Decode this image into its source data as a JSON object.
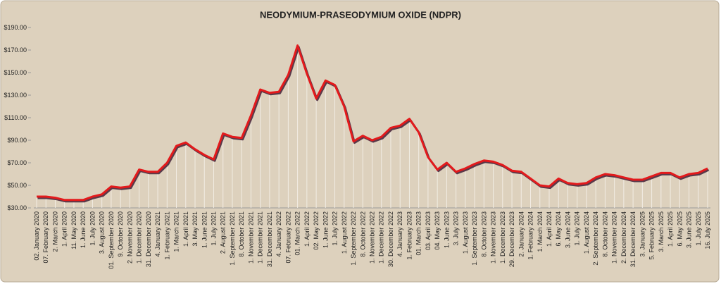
{
  "chart_data": {
    "type": "line",
    "title": "NEODYMIUM-PRASEODYMIUM OXIDE (NDPR)",
    "categories": [
      "02. January 2020",
      "07. February 2020",
      "2. March 2020",
      "1. April 2020",
      "11. May 2020",
      "1. June 2020",
      "1. July 2020",
      "3. August 2020",
      "01. September 2020",
      "9. October 2020",
      "2. November 2020",
      "1. December 2020",
      "31. December 2020",
      "4. January 2021",
      "1. February 2021",
      "1. March 2021",
      "1. April 2021",
      "3. May 2021",
      "1. June 2021",
      "1. July 2021",
      "2. August 2021",
      "1. September 2021",
      "8. October 2021",
      "1. November 2021",
      "1. December 2021",
      "31. December 2021",
      "4. January 2022",
      "07. February 2022",
      "01. March 2022",
      "1. April 2022",
      "02. May 2022",
      "1. June 2022",
      "1. July 2022",
      "1. August 2022",
      "1. September 2022",
      "8. October 2022",
      "1. November 2022",
      "1. December 2022",
      "30. December 2022",
      "4. January 2023",
      "1. February 2023",
      "01. March 2023",
      "03. April 2023",
      "04. May 2023",
      "1. June 2023",
      "3. July 2023",
      "1. August 2023",
      "1. September 2023",
      "8. October 2023",
      "1. November 2023",
      "1. December 2023",
      "29. December 2023",
      "2. January 2024",
      "1. February 2024",
      "1. March 2024",
      "1. April 2024",
      "6. May 2024",
      "3. June 2024",
      "1. July 2024",
      "1. August 2024",
      "2. September 2024",
      "8. October 2024",
      "1. November 2024",
      "2. December 2024",
      "31. December 2024",
      "3. January 2025",
      "5. February 2025",
      "3. March 2025",
      "1. April 2025",
      "6. May 2025",
      "3. June 2025",
      "1. July 2025",
      "16. July 2025"
    ],
    "values": [
      40,
      40,
      39,
      37,
      37,
      37,
      40,
      42,
      49,
      48,
      49,
      64,
      62,
      62,
      70,
      85,
      88,
      82,
      77,
      73,
      96,
      93,
      92,
      112,
      135,
      132,
      133,
      148,
      174,
      149,
      127,
      143,
      139,
      120,
      89,
      94,
      90,
      93,
      101,
      103,
      109,
      97,
      75,
      64,
      70,
      62,
      65,
      69,
      72,
      71,
      68,
      63,
      62,
      56,
      50,
      49,
      56,
      52,
      51,
      52,
      57,
      60,
      59,
      57,
      55,
      55,
      58,
      61,
      61,
      57,
      60,
      61,
      65
    ],
    "color": "#e31a1c",
    "ylim": [
      30,
      190
    ],
    "yticks": [
      {
        "value": 30,
        "label": "$30.00"
      },
      {
        "value": 50,
        "label": "$50.00"
      },
      {
        "value": 70,
        "label": "$70.00"
      },
      {
        "value": 90,
        "label": "$90.00"
      },
      {
        "value": 110,
        "label": "$110.00"
      },
      {
        "value": 130,
        "label": "$130.00"
      },
      {
        "value": 150,
        "label": "$150.00"
      },
      {
        "value": 170,
        "label": "$170.00"
      },
      {
        "value": 190,
        "label": "$190.00"
      }
    ]
  }
}
